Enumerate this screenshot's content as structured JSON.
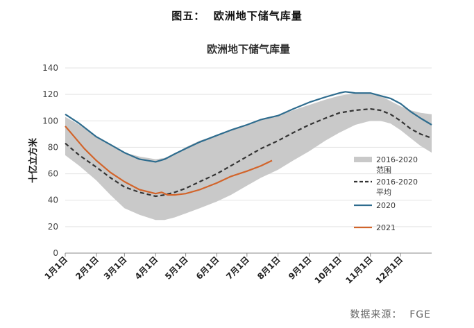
{
  "figure_title": "图五：  欧洲地下储气库量",
  "source": "数据来源：  FGE",
  "chart_data": {
    "type": "line",
    "title": "欧洲地下储气库量",
    "ylabel": "十亿立方米",
    "ylim": [
      0,
      140
    ],
    "yticks": [
      "0",
      "20",
      "40",
      "60",
      "80",
      "100",
      "120",
      "140"
    ],
    "x_tick_labels": [
      "1月1日",
      "2月1日",
      "3月1日",
      "4月1日",
      "5月1日",
      "6月1日",
      "7月1日",
      "8月1日",
      "9月1日",
      "10月1日",
      "11月1日",
      "12月1日"
    ],
    "x_tick_days": [
      1,
      32,
      60,
      91,
      121,
      152,
      182,
      213,
      244,
      274,
      305,
      335
    ],
    "xlim": [
      1,
      366
    ],
    "grid": "horizontal",
    "legend_position": "right",
    "series": [
      {
        "name": "2016-2020 范围",
        "kind": "band",
        "color": "#c9c9c9",
        "x": [
          1,
          15,
          32,
          46,
          60,
          75,
          91,
          100,
          110,
          121,
          135,
          152,
          166,
          182,
          196,
          213,
          228,
          244,
          260,
          274,
          290,
          305,
          315,
          325,
          335,
          345,
          355,
          366
        ],
        "low": [
          74,
          66,
          55,
          44,
          34,
          29,
          25,
          25,
          27,
          30,
          34,
          39,
          44,
          51,
          57,
          63,
          70,
          77,
          85,
          91,
          97,
          100,
          100,
          98,
          93,
          87,
          81,
          76
        ],
        "high": [
          103,
          97,
          88,
          82,
          76,
          73,
          71,
          72,
          75,
          80,
          85,
          89,
          93,
          97,
          101,
          104,
          108,
          112,
          116,
          119,
          121,
          121,
          119,
          115,
          111,
          108,
          106,
          105
        ]
      },
      {
        "name": "2016-2020 平均",
        "kind": "line",
        "style": "dashed",
        "color": "#333333",
        "x": [
          1,
          15,
          32,
          46,
          60,
          75,
          91,
          100,
          110,
          121,
          135,
          152,
          166,
          182,
          196,
          213,
          228,
          244,
          260,
          274,
          290,
          305,
          315,
          325,
          335,
          345,
          355,
          366
        ],
        "y": [
          83,
          74,
          65,
          57,
          50,
          46,
          43,
          44,
          46,
          49,
          54,
          60,
          66,
          73,
          79,
          85,
          91,
          97,
          102,
          106,
          108,
          109,
          108,
          105,
          100,
          94,
          90,
          87
        ]
      },
      {
        "name": "2020",
        "kind": "line",
        "style": "solid",
        "color": "#2e6c8e",
        "x": [
          1,
          15,
          32,
          46,
          60,
          75,
          91,
          100,
          110,
          121,
          135,
          152,
          166,
          182,
          196,
          213,
          228,
          244,
          260,
          274,
          280,
          290,
          305,
          315,
          325,
          335,
          345,
          355,
          366
        ],
        "y": [
          105,
          98,
          88,
          82,
          76,
          71,
          69,
          71,
          75,
          79,
          84,
          89,
          93,
          97,
          101,
          104,
          109,
          114,
          118,
          121,
          122,
          121,
          121,
          119,
          117,
          113,
          107,
          102,
          97
        ]
      },
      {
        "name": "2021",
        "kind": "line",
        "style": "solid",
        "color": "#d2642a",
        "x": [
          1,
          10,
          20,
          32,
          46,
          60,
          75,
          91,
          97,
          103,
          110,
          121,
          135,
          152,
          166,
          182,
          196,
          207
        ],
        "y": [
          96,
          88,
          79,
          70,
          61,
          54,
          48,
          45,
          46,
          44,
          44,
          45,
          48,
          53,
          58,
          62,
          66,
          70
        ]
      }
    ],
    "legend": [
      {
        "label": "2016-2020\n范围",
        "kind": "band",
        "color": "#c9c9c9"
      },
      {
        "label": "2016-2020\n平均",
        "kind": "dashed",
        "color": "#333333"
      },
      {
        "label": "2020",
        "kind": "solid",
        "color": "#2e6c8e"
      },
      {
        "label": "2021",
        "kind": "solid",
        "color": "#d2642a"
      }
    ]
  }
}
